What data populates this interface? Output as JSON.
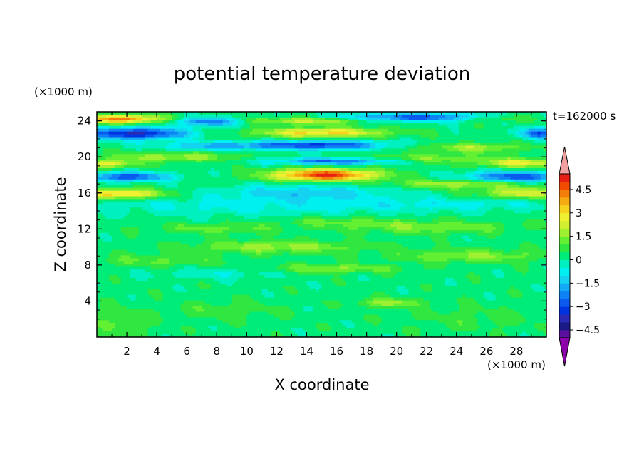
{
  "chart_data": {
    "type": "heatmap",
    "title": "potential temperature deviation",
    "xlabel": "X coordinate",
    "ylabel": "Z coordinate",
    "x_unit": "(×1000 m)",
    "y_unit": "(×1000 m)",
    "time_label": "t=162000 s",
    "xlim": [
      0,
      30
    ],
    "ylim": [
      0,
      25
    ],
    "x_ticks": [
      2,
      4,
      6,
      8,
      10,
      12,
      14,
      16,
      18,
      20,
      22,
      24,
      26,
      28
    ],
    "y_ticks": [
      4,
      8,
      12,
      16,
      20,
      24
    ],
    "colorbar": {
      "levels": [
        -5,
        -4.5,
        -4,
        -3.5,
        -3,
        -2.5,
        -2,
        -1.5,
        -1,
        -0.5,
        0,
        0.5,
        1,
        1.5,
        2,
        2.5,
        3,
        3.5,
        4,
        4.5,
        5
      ],
      "colors": [
        "#5a0f9e",
        "#1a1a86",
        "#2a2ab4",
        "#0033e0",
        "#0a5af0",
        "#0f82f5",
        "#14aaf5",
        "#14d2f0",
        "#00f0f0",
        "#00f0c0",
        "#00ec78",
        "#30e640",
        "#64f032",
        "#a0f032",
        "#d2f032",
        "#f0f032",
        "#f5d21e",
        "#f5aa14",
        "#f57d0a",
        "#f04b00",
        "#e61e14"
      ],
      "under_color": "#8c00aa",
      "over_color": "#f0a0a0",
      "labeled_values": [
        "4.5",
        "3",
        "1.5",
        "0",
        "−1.5",
        "−3",
        "−4.5"
      ]
    },
    "bands": [
      {
        "z": 24.2,
        "x_start": 0,
        "x_end": 30,
        "value": 3.5,
        "note": "warm near x 0-3, cool near x 6-8 and 20-28"
      },
      {
        "z": 22.6,
        "x_start": 0,
        "x_end": 30,
        "value": -3.5,
        "note": "cool x 0-5 and x 29-30, warm x 12-18"
      },
      {
        "z": 21.2,
        "x_start": 0,
        "x_end": 30,
        "value": -3.0,
        "note": "cool x 12-18"
      },
      {
        "z": 19.3,
        "x_start": 0,
        "x_end": 30,
        "value": -2.0,
        "note": "warm x 0-2 and x 26-30, cool x 13-19"
      },
      {
        "z": 18.0,
        "x_start": 0,
        "x_end": 30,
        "value": 5.0,
        "note": "warm core near x 15, cool x 0-3 and x 25-30"
      },
      {
        "z": 16.0,
        "x_start": 0,
        "x_end": 30,
        "value": 2.5,
        "note": "warm x 0-3 and x 27-30"
      },
      {
        "z": 14.5,
        "x_start": 0,
        "x_end": 30,
        "value": -1.0
      },
      {
        "z": 12.0,
        "x_start": 0,
        "x_end": 30,
        "value": 1.0
      },
      {
        "z": 9.5,
        "x_start": 0,
        "x_end": 30,
        "value": 1.5
      },
      {
        "z": 7.5,
        "x_start": 0,
        "x_end": 30,
        "value": 1.5
      },
      {
        "z": 4.0,
        "x_start": 0,
        "x_end": 30,
        "value": 0.5
      },
      {
        "z": 2.0,
        "x_start": 0,
        "x_end": 30,
        "value": 0.0
      }
    ]
  }
}
